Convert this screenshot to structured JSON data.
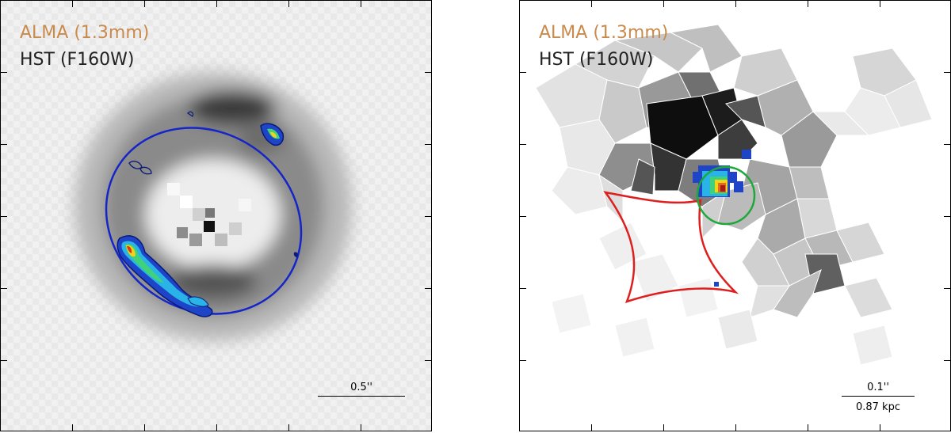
{
  "colors": {
    "alma_label": "#c98a4b",
    "hst_label": "#222222",
    "einstein_ellipse": "#1525c8",
    "caustic": "#dd1f1f",
    "source_circle": "#1fa83a"
  },
  "panels": [
    {
      "alma_label": "ALMA (1.3mm)",
      "hst_label": "HST (F160W)",
      "scalebar_label": "0.5''"
    },
    {
      "alma_label": "ALMA (1.3mm)",
      "hst_label": "HST (F160W)",
      "scalebar_label": "0.1''",
      "scalebar_label_2": "0.87 kpc"
    }
  ]
}
